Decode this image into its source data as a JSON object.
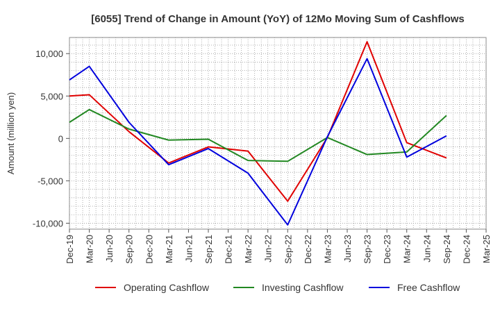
{
  "chart_data": {
    "type": "line",
    "title": "[6055]  Trend of Change in Amount (YoY) of 12Mo Moving Sum of Cashflows",
    "xlabel": "",
    "ylabel": "Amount (million yen)",
    "categories": [
      "Dec-19",
      "Mar-20",
      "Jun-20",
      "Sep-20",
      "Dec-20",
      "Mar-21",
      "Jun-21",
      "Sep-21",
      "Dec-21",
      "Mar-22",
      "Jun-22",
      "Sep-22",
      "Dec-22",
      "Mar-23",
      "Jun-23",
      "Sep-23",
      "Dec-23",
      "Mar-24",
      "Jun-24",
      "Sep-24",
      "Dec-24",
      "Mar-25"
    ],
    "ylim": [
      -10700,
      11900
    ],
    "yticks": [
      10000,
      5000,
      0,
      -5000,
      -10000
    ],
    "ytick_labels": [
      "10,000",
      "5,000",
      "0",
      "-5,000",
      "-10,000"
    ],
    "grid": true,
    "legend_position": "bottom",
    "series": [
      {
        "name": "Operating Cashflow",
        "color": "#e00000",
        "values": [
          5000,
          5150,
          null,
          800,
          null,
          -2900,
          null,
          -1000,
          null,
          -1500,
          null,
          -7400,
          null,
          100,
          null,
          11400,
          null,
          -500,
          null,
          -2300,
          null,
          null
        ]
      },
      {
        "name": "Investing Cashflow",
        "color": "#228822",
        "values": [
          1900,
          3400,
          null,
          1100,
          null,
          -200,
          null,
          -100,
          null,
          -2600,
          null,
          -2700,
          null,
          100,
          null,
          -1900,
          null,
          -1600,
          null,
          2700,
          null,
          null
        ]
      },
      {
        "name": "Free Cashflow",
        "color": "#0000dd",
        "values": [
          6900,
          8500,
          null,
          1900,
          null,
          -3100,
          null,
          -1200,
          null,
          -4100,
          null,
          -10200,
          null,
          200,
          null,
          9400,
          null,
          -2200,
          null,
          300,
          null,
          null
        ]
      }
    ]
  }
}
